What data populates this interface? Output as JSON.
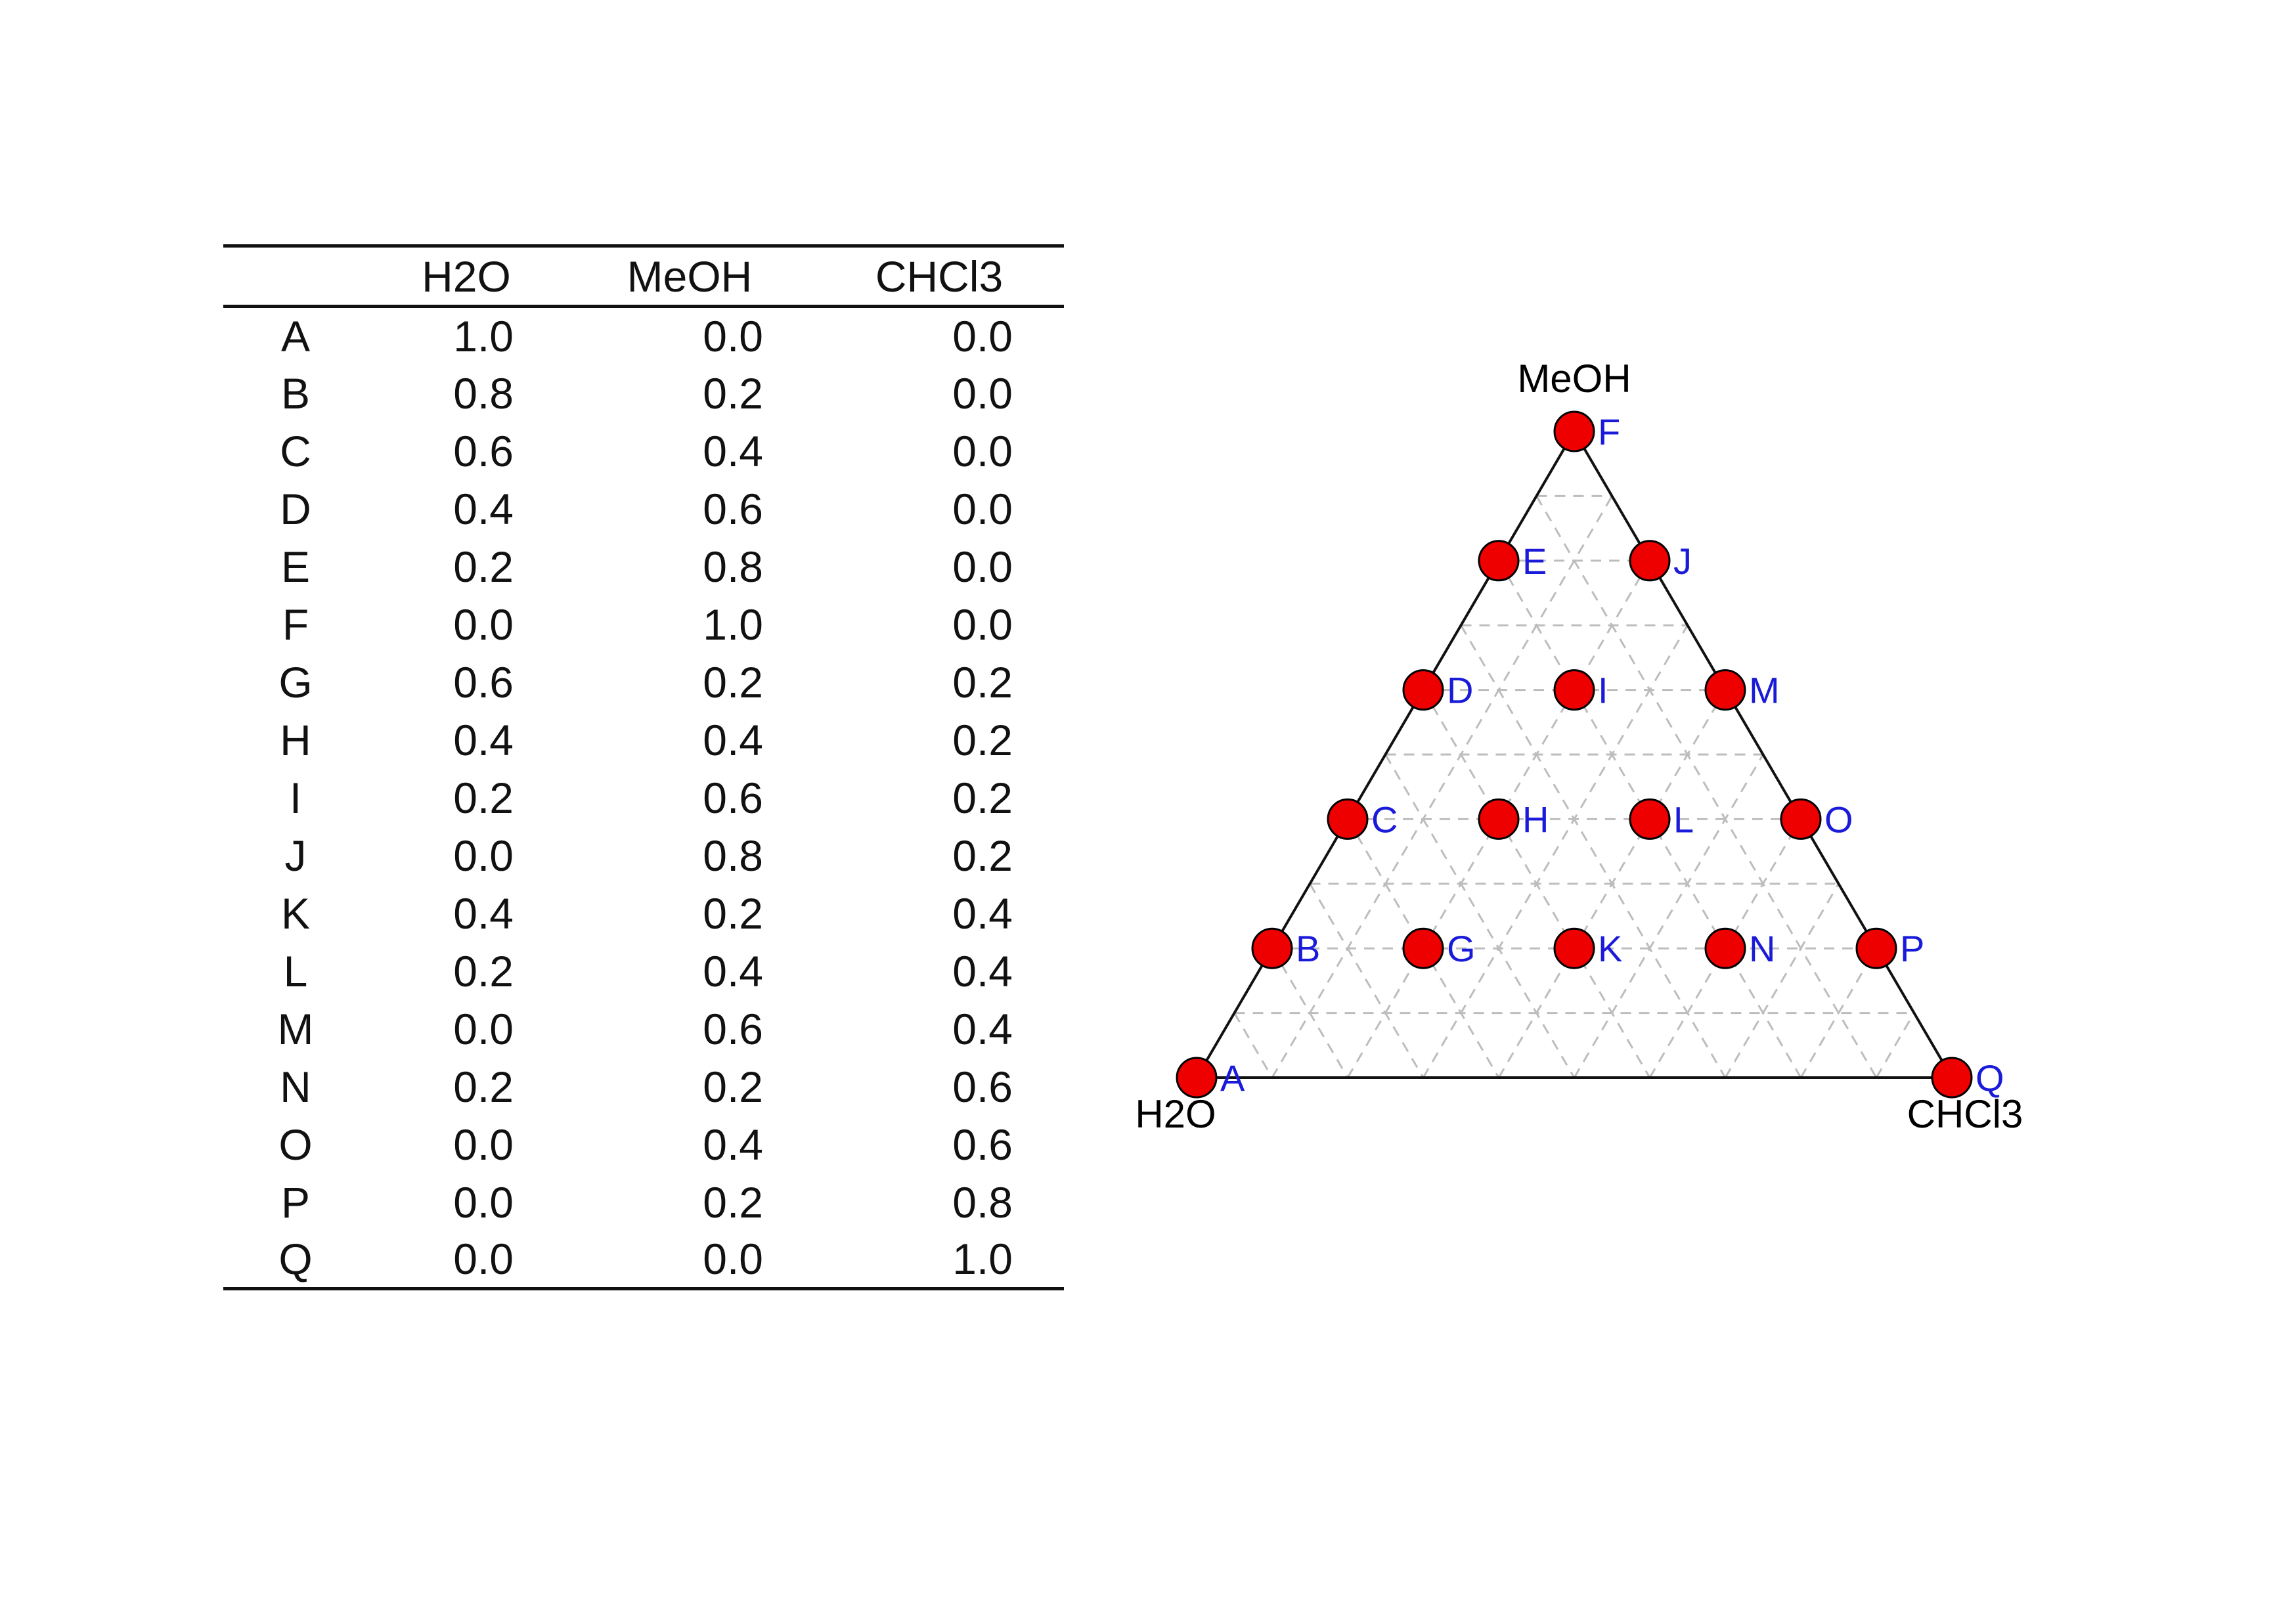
{
  "chart_data": [
    {
      "type": "table",
      "columns": [
        "",
        "H2O",
        "MeOH",
        "CHCl3"
      ],
      "rows": [
        {
          "label": "A",
          "values": [
            "1.0",
            "0.0",
            "0.0"
          ]
        },
        {
          "label": "B",
          "values": [
            "0.8",
            "0.2",
            "0.0"
          ]
        },
        {
          "label": "C",
          "values": [
            "0.6",
            "0.4",
            "0.0"
          ]
        },
        {
          "label": "D",
          "values": [
            "0.4",
            "0.6",
            "0.0"
          ]
        },
        {
          "label": "E",
          "values": [
            "0.2",
            "0.8",
            "0.0"
          ]
        },
        {
          "label": "F",
          "values": [
            "0.0",
            "1.0",
            "0.0"
          ]
        },
        {
          "label": "G",
          "values": [
            "0.6",
            "0.2",
            "0.2"
          ]
        },
        {
          "label": "H",
          "values": [
            "0.4",
            "0.4",
            "0.2"
          ]
        },
        {
          "label": "I",
          "values": [
            "0.2",
            "0.6",
            "0.2"
          ]
        },
        {
          "label": "J",
          "values": [
            "0.0",
            "0.8",
            "0.2"
          ]
        },
        {
          "label": "K",
          "values": [
            "0.4",
            "0.2",
            "0.4"
          ]
        },
        {
          "label": "L",
          "values": [
            "0.2",
            "0.4",
            "0.4"
          ]
        },
        {
          "label": "M",
          "values": [
            "0.0",
            "0.6",
            "0.4"
          ]
        },
        {
          "label": "N",
          "values": [
            "0.2",
            "0.2",
            "0.6"
          ]
        },
        {
          "label": "O",
          "values": [
            "0.0",
            "0.4",
            "0.6"
          ]
        },
        {
          "label": "P",
          "values": [
            "0.0",
            "0.2",
            "0.8"
          ]
        },
        {
          "label": "Q",
          "values": [
            "0.0",
            "0.0",
            "1.0"
          ]
        }
      ]
    },
    {
      "type": "scatter",
      "subtype": "ternary",
      "vertices": {
        "left": "H2O",
        "top": "MeOH",
        "right": "CHCl3"
      },
      "grid": true,
      "grid_step": 0.1,
      "point_color": "#ee0000",
      "label_color": "#1a1ad9",
      "points": [
        {
          "label": "A",
          "H2O": 1.0,
          "MeOH": 0.0,
          "CHCl3": 0.0
        },
        {
          "label": "B",
          "H2O": 0.8,
          "MeOH": 0.2,
          "CHCl3": 0.0
        },
        {
          "label": "C",
          "H2O": 0.6,
          "MeOH": 0.4,
          "CHCl3": 0.0
        },
        {
          "label": "D",
          "H2O": 0.4,
          "MeOH": 0.6,
          "CHCl3": 0.0
        },
        {
          "label": "E",
          "H2O": 0.2,
          "MeOH": 0.8,
          "CHCl3": 0.0
        },
        {
          "label": "F",
          "H2O": 0.0,
          "MeOH": 1.0,
          "CHCl3": 0.0
        },
        {
          "label": "G",
          "H2O": 0.6,
          "MeOH": 0.2,
          "CHCl3": 0.2
        },
        {
          "label": "H",
          "H2O": 0.4,
          "MeOH": 0.4,
          "CHCl3": 0.2
        },
        {
          "label": "I",
          "H2O": 0.2,
          "MeOH": 0.6,
          "CHCl3": 0.2
        },
        {
          "label": "J",
          "H2O": 0.0,
          "MeOH": 0.8,
          "CHCl3": 0.2
        },
        {
          "label": "K",
          "H2O": 0.4,
          "MeOH": 0.2,
          "CHCl3": 0.4
        },
        {
          "label": "L",
          "H2O": 0.2,
          "MeOH": 0.4,
          "CHCl3": 0.4
        },
        {
          "label": "M",
          "H2O": 0.0,
          "MeOH": 0.6,
          "CHCl3": 0.4
        },
        {
          "label": "N",
          "H2O": 0.2,
          "MeOH": 0.2,
          "CHCl3": 0.6
        },
        {
          "label": "O",
          "H2O": 0.0,
          "MeOH": 0.4,
          "CHCl3": 0.6
        },
        {
          "label": "P",
          "H2O": 0.0,
          "MeOH": 0.2,
          "CHCl3": 0.8
        },
        {
          "label": "Q",
          "H2O": 0.0,
          "MeOH": 0.0,
          "CHCl3": 1.0
        }
      ]
    }
  ]
}
